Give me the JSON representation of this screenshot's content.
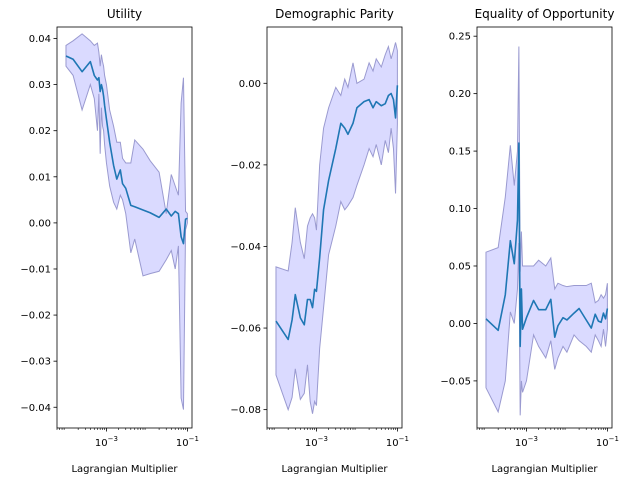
{
  "colors": {
    "line": "#1f77b4",
    "band_fill": "#d6d6ff",
    "band_edge": "#9a9ad0"
  },
  "chart_data": [
    {
      "type": "line",
      "title": "Utility",
      "xlabel": "Lagrangian Multiplier",
      "ylabel": "",
      "xscale": "log",
      "xlim": [
        6e-05,
        0.13
      ],
      "ylim": [
        -0.0445,
        0.0425
      ],
      "xticks": [
        {
          "v": 0.001,
          "base": "10",
          "exp": "−3"
        },
        {
          "v": 0.1,
          "base": "10",
          "exp": "−1"
        }
      ],
      "yticks": [
        {
          "v": 0.04,
          "label": "0.04"
        },
        {
          "v": 0.03,
          "label": "0.03"
        },
        {
          "v": 0.02,
          "label": "0.02"
        },
        {
          "v": 0.01,
          "label": "0.01"
        },
        {
          "v": 0.0,
          "label": "0.00"
        },
        {
          "v": -0.01,
          "label": "−0.01"
        },
        {
          "v": -0.02,
          "label": "−0.02"
        },
        {
          "v": -0.03,
          "label": "−0.03"
        },
        {
          "v": -0.04,
          "label": "−0.04"
        }
      ],
      "grid": false,
      "series": [
        {
          "x": [
            0.0001,
            0.00015,
            0.00025,
            0.0004,
            0.0005,
            0.0006,
            0.00065,
            0.0007,
            0.00075,
            0.0008,
            0.00085,
            0.0009,
            0.001,
            0.0012,
            0.0015,
            0.0018,
            0.0022,
            0.0025,
            0.003,
            0.004,
            0.005,
            0.008,
            0.012,
            0.02,
            0.03,
            0.04,
            0.05,
            0.06,
            0.07,
            0.08,
            0.09,
            0.1
          ],
          "y": [
            0.0362,
            0.0355,
            0.0328,
            0.035,
            0.032,
            0.031,
            0.0315,
            0.0285,
            0.03,
            0.029,
            0.0275,
            0.0255,
            0.0225,
            0.0175,
            0.0125,
            0.0095,
            0.0115,
            0.0085,
            0.0075,
            0.0038,
            0.0035,
            0.0028,
            0.0022,
            0.0012,
            0.003,
            0.0015,
            0.0025,
            0.002,
            -0.003,
            -0.0045,
            0.0008,
            0.001
          ],
          "lower": [
            0.034,
            0.032,
            0.0245,
            0.03,
            0.027,
            0.02,
            0.028,
            0.015,
            0.025,
            0.021,
            0.02,
            0.017,
            0.013,
            0.008,
            0.0045,
            0.003,
            0.006,
            0.005,
            0.002,
            -0.0065,
            -0.0035,
            -0.0115,
            -0.011,
            -0.0105,
            -0.008,
            -0.006,
            -0.01,
            -0.005,
            -0.038,
            -0.0405,
            -0.0015,
            0.0
          ],
          "upper": [
            0.0385,
            0.0395,
            0.041,
            0.0395,
            0.0385,
            0.039,
            0.037,
            0.034,
            0.0365,
            0.035,
            0.034,
            0.032,
            0.03,
            0.0245,
            0.021,
            0.0175,
            0.0175,
            0.014,
            0.013,
            0.013,
            0.018,
            0.016,
            0.0135,
            0.011,
            0.002,
            0.0105,
            0.008,
            0.006,
            0.026,
            0.0315,
            0.0025,
            0.002
          ]
        }
      ]
    },
    {
      "type": "line",
      "title": "Demographic Parity",
      "xlabel": "Lagrangian Multiplier",
      "ylabel": "",
      "xscale": "log",
      "xlim": [
        6e-05,
        0.13
      ],
      "ylim": [
        -0.0845,
        0.0138
      ],
      "xticks": [
        {
          "v": 0.001,
          "base": "10",
          "exp": "−3"
        },
        {
          "v": 0.1,
          "base": "10",
          "exp": "−1"
        }
      ],
      "yticks": [
        {
          "v": 0.0,
          "label": "0.00"
        },
        {
          "v": -0.02,
          "label": "−0.02"
        },
        {
          "v": -0.04,
          "label": "−0.04"
        },
        {
          "v": -0.06,
          "label": "−0.06"
        },
        {
          "v": -0.08,
          "label": "−0.08"
        }
      ],
      "grid": false,
      "series": [
        {
          "x": [
            0.0001,
            0.0002,
            0.00025,
            0.0003,
            0.0004,
            0.0005,
            0.0006,
            0.0007,
            0.0008,
            0.0009,
            0.001,
            0.0012,
            0.0015,
            0.002,
            0.003,
            0.004,
            0.005,
            0.006,
            0.008,
            0.01,
            0.015,
            0.02,
            0.025,
            0.03,
            0.04,
            0.05,
            0.06,
            0.07,
            0.08,
            0.09,
            0.1
          ],
          "y": [
            -0.0583,
            -0.0628,
            -0.058,
            -0.0518,
            -0.0575,
            -0.0592,
            -0.053,
            -0.053,
            -0.055,
            -0.0505,
            -0.051,
            -0.0428,
            -0.031,
            -0.0238,
            -0.016,
            -0.0098,
            -0.011,
            -0.0125,
            -0.0098,
            -0.006,
            -0.0045,
            -0.004,
            -0.006,
            -0.0045,
            -0.0055,
            -0.005,
            -0.003,
            -0.0025,
            -0.004,
            -0.0085,
            -0.0005
          ],
          "lower": [
            -0.0715,
            -0.08,
            -0.077,
            -0.07,
            -0.0775,
            -0.076,
            -0.069,
            -0.078,
            -0.081,
            -0.078,
            -0.079,
            -0.065,
            -0.055,
            -0.042,
            -0.035,
            -0.029,
            -0.031,
            -0.03,
            -0.028,
            -0.025,
            -0.02,
            -0.016,
            -0.018,
            -0.015,
            -0.02,
            -0.014,
            -0.017,
            -0.011,
            -0.016,
            -0.027,
            -0.01
          ],
          "upper": [
            -0.045,
            -0.046,
            -0.039,
            -0.0305,
            -0.039,
            -0.043,
            -0.035,
            -0.033,
            -0.032,
            -0.033,
            -0.036,
            -0.02,
            -0.011,
            -0.006,
            -0.001,
            -0.003,
            0.001,
            -0.001,
            0.005,
            0.0,
            0.001,
            0.005,
            0.003,
            0.006,
            0.004,
            0.007,
            0.009,
            0.006,
            0.008,
            0.01,
            0.008
          ]
        }
      ]
    },
    {
      "type": "line",
      "title": "Equality of Opportunity",
      "xlabel": "Lagrangian Multiplier",
      "ylabel": "",
      "xscale": "log",
      "xlim": [
        6e-05,
        0.13
      ],
      "ylim": [
        -0.091,
        0.258
      ],
      "xticks": [
        {
          "v": 0.001,
          "base": "10",
          "exp": "−3"
        },
        {
          "v": 0.1,
          "base": "10",
          "exp": "−1"
        }
      ],
      "yticks": [
        {
          "v": 0.25,
          "label": "0.25"
        },
        {
          "v": 0.2,
          "label": "0.20"
        },
        {
          "v": 0.15,
          "label": "0.15"
        },
        {
          "v": 0.1,
          "label": "0.10"
        },
        {
          "v": 0.05,
          "label": "0.05"
        },
        {
          "v": 0.0,
          "label": "0.00"
        },
        {
          "v": -0.05,
          "label": "−0.05"
        }
      ],
      "grid": false,
      "series": [
        {
          "x": [
            0.0001,
            0.0002,
            0.0003,
            0.0004,
            0.0005,
            0.0006,
            0.00065,
            0.0007,
            0.00075,
            0.0008,
            0.001,
            0.0015,
            0.002,
            0.003,
            0.004,
            0.005,
            0.006,
            0.008,
            0.01,
            0.015,
            0.02,
            0.03,
            0.04,
            0.05,
            0.06,
            0.07,
            0.08,
            0.09,
            0.1
          ],
          "y": [
            0.004,
            -0.006,
            0.025,
            0.072,
            0.052,
            0.09,
            0.157,
            -0.02,
            0.03,
            -0.005,
            0.005,
            0.02,
            0.012,
            0.012,
            0.021,
            -0.012,
            -0.002,
            0.005,
            0.003,
            0.009,
            0.013,
            0.003,
            -0.004,
            0.008,
            0.002,
            0.001,
            0.009,
            0.004,
            0.013
          ],
          "lower": [
            -0.056,
            -0.077,
            -0.05,
            0.01,
            0.0,
            0.03,
            0.07,
            -0.08,
            -0.05,
            -0.06,
            -0.05,
            -0.01,
            -0.02,
            -0.03,
            -0.015,
            -0.04,
            -0.03,
            -0.02,
            -0.025,
            -0.01,
            -0.015,
            -0.02,
            -0.025,
            -0.01,
            -0.015,
            -0.02,
            -0.005,
            -0.02,
            -0.005
          ],
          "upper": [
            0.062,
            0.066,
            0.11,
            0.155,
            0.12,
            0.15,
            0.241,
            0.045,
            0.08,
            0.05,
            0.05,
            0.05,
            0.055,
            0.05,
            0.057,
            0.03,
            0.035,
            0.033,
            0.032,
            0.033,
            0.033,
            0.033,
            0.035,
            0.018,
            0.02,
            0.025,
            0.022,
            0.025,
            0.035
          ]
        }
      ]
    }
  ]
}
